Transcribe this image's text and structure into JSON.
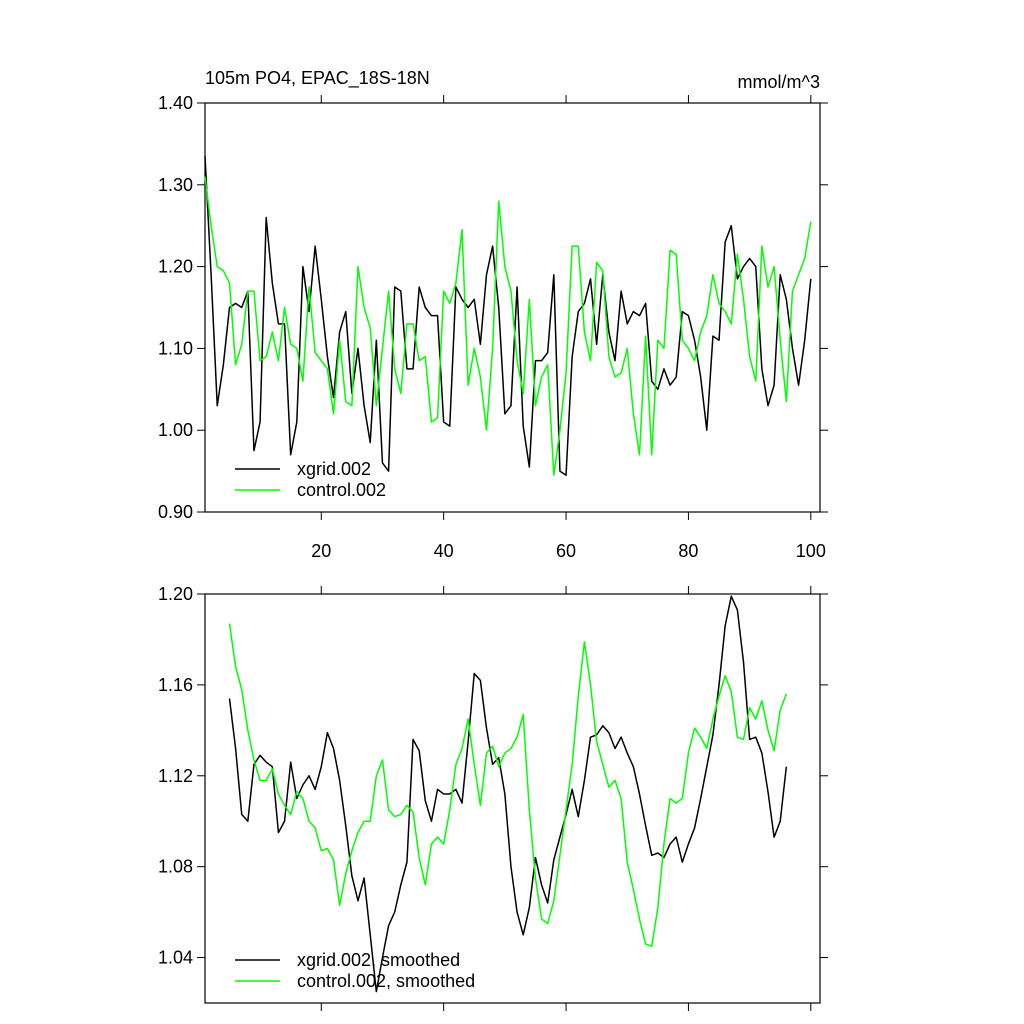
{
  "chart_data": [
    {
      "type": "line",
      "title": "105m PO4, EPAC_18S-18N",
      "units": "mmol/m^3",
      "x": [
        1,
        2,
        3,
        4,
        5,
        6,
        7,
        8,
        9,
        10,
        11,
        12,
        13,
        14,
        15,
        16,
        17,
        18,
        19,
        20,
        21,
        22,
        23,
        24,
        25,
        26,
        27,
        28,
        29,
        30,
        31,
        32,
        33,
        34,
        35,
        36,
        37,
        38,
        39,
        40,
        41,
        42,
        43,
        44,
        45,
        46,
        47,
        48,
        49,
        50,
        51,
        52,
        53,
        54,
        55,
        56,
        57,
        58,
        59,
        60,
        61,
        62,
        63,
        64,
        65,
        66,
        67,
        68,
        69,
        70,
        71,
        72,
        73,
        74,
        75,
        76,
        77,
        78,
        79,
        80,
        81,
        82,
        83,
        84,
        85,
        86,
        87,
        88,
        89,
        90,
        91,
        92,
        93,
        94,
        95,
        96,
        97,
        98,
        99,
        100
      ],
      "series": [
        {
          "name": "xgrid.002",
          "color": "#000000",
          "values": [
            1.335,
            1.19,
            1.03,
            1.08,
            1.15,
            1.155,
            1.15,
            1.17,
            0.975,
            1.01,
            1.26,
            1.18,
            1.13,
            1.13,
            0.97,
            1.01,
            1.2,
            1.145,
            1.225,
            1.16,
            1.09,
            1.04,
            1.12,
            1.145,
            1.045,
            1.1,
            1.03,
            0.985,
            1.11,
            0.96,
            0.95,
            1.175,
            1.17,
            1.075,
            1.075,
            1.175,
            1.15,
            1.14,
            1.14,
            1.01,
            1.005,
            1.175,
            1.16,
            1.15,
            1.16,
            1.105,
            1.19,
            1.225,
            1.15,
            1.02,
            1.03,
            1.175,
            1.005,
            0.955,
            1.085,
            1.085,
            1.095,
            1.19,
            0.95,
            0.945,
            1.09,
            1.145,
            1.155,
            1.185,
            1.105,
            1.19,
            1.12,
            1.085,
            1.17,
            1.13,
            1.145,
            1.14,
            1.155,
            1.06,
            1.05,
            1.075,
            1.055,
            1.065,
            1.145,
            1.14,
            1.11,
            1.065,
            1.0,
            1.115,
            1.11,
            1.23,
            1.25,
            1.185,
            1.2,
            1.21,
            1.2,
            1.075,
            1.03,
            1.055,
            1.19,
            1.16,
            1.1,
            1.055,
            1.11,
            1.185
          ]
        },
        {
          "name": "control.002",
          "color": "#00ff00",
          "values": [
            1.31,
            1.25,
            1.2,
            1.195,
            1.18,
            1.08,
            1.105,
            1.17,
            1.17,
            1.085,
            1.09,
            1.12,
            1.085,
            1.15,
            1.105,
            1.1,
            1.06,
            1.175,
            1.095,
            1.085,
            1.075,
            1.02,
            1.11,
            1.035,
            1.03,
            1.2,
            1.15,
            1.125,
            1.03,
            1.1,
            1.17,
            1.075,
            1.045,
            1.13,
            1.13,
            1.085,
            1.09,
            1.01,
            1.015,
            1.17,
            1.155,
            1.18,
            1.245,
            1.055,
            1.1,
            1.065,
            1.0,
            1.1,
            1.28,
            1.2,
            1.17,
            1.085,
            1.045,
            1.16,
            1.03,
            1.065,
            1.08,
            0.945,
            1.0,
            1.07,
            1.225,
            1.225,
            1.12,
            1.085,
            1.205,
            1.195,
            1.09,
            1.065,
            1.07,
            1.1,
            1.02,
            0.97,
            1.115,
            0.97,
            1.11,
            1.1,
            1.22,
            1.215,
            1.11,
            1.1,
            1.085,
            1.12,
            1.14,
            1.19,
            1.155,
            1.145,
            1.13,
            1.215,
            1.16,
            1.09,
            1.06,
            1.225,
            1.175,
            1.2,
            1.11,
            1.035,
            1.17,
            1.19,
            1.21,
            1.255
          ]
        }
      ],
      "xlim": [
        1,
        101.5
      ],
      "xticks": [
        20,
        40,
        60,
        80,
        100
      ],
      "xticklabels": true,
      "ylim": [
        0.9,
        1.4
      ],
      "yticks": [
        {
          "value": 0.9,
          "label": "0.90"
        },
        {
          "value": 1.0,
          "label": "1.00"
        },
        {
          "value": 1.1,
          "label": "1.10"
        },
        {
          "value": 1.2,
          "label": "1.20"
        },
        {
          "value": 1.3,
          "label": "1.30"
        },
        {
          "value": 1.4,
          "label": "1.40"
        }
      ],
      "legend": "lower left"
    },
    {
      "type": "line",
      "x": [
        5,
        6,
        7,
        8,
        9,
        10,
        11,
        12,
        13,
        14,
        15,
        16,
        17,
        18,
        19,
        20,
        21,
        22,
        23,
        24,
        25,
        26,
        27,
        28,
        29,
        30,
        31,
        32,
        33,
        34,
        35,
        36,
        37,
        38,
        39,
        40,
        41,
        42,
        43,
        44,
        45,
        46,
        47,
        48,
        49,
        50,
        51,
        52,
        53,
        54,
        55,
        56,
        57,
        58,
        59,
        60,
        61,
        62,
        63,
        64,
        65,
        66,
        67,
        68,
        69,
        70,
        71,
        72,
        73,
        74,
        75,
        76,
        77,
        78,
        79,
        80,
        81,
        82,
        83,
        84,
        85,
        86,
        87,
        88,
        89,
        90,
        91,
        92,
        93,
        94,
        95,
        96
      ],
      "series": [
        {
          "name": "xgrid.002, smoothed",
          "color": "#000000",
          "values": [
            1.154,
            1.132,
            1.103,
            1.1,
            1.125,
            1.129,
            1.126,
            1.124,
            1.095,
            1.1,
            1.126,
            1.11,
            1.116,
            1.12,
            1.114,
            1.124,
            1.139,
            1.132,
            1.118,
            1.098,
            1.076,
            1.065,
            1.075,
            1.05,
            1.025,
            1.04,
            1.054,
            1.06,
            1.072,
            1.082,
            1.136,
            1.131,
            1.109,
            1.1,
            1.114,
            1.112,
            1.112,
            1.114,
            1.108,
            1.135,
            1.165,
            1.162,
            1.141,
            1.125,
            1.128,
            1.112,
            1.08,
            1.06,
            1.05,
            1.062,
            1.084,
            1.072,
            1.064,
            1.083,
            1.093,
            1.103,
            1.114,
            1.102,
            1.118,
            1.137,
            1.138,
            1.142,
            1.139,
            1.132,
            1.137,
            1.13,
            1.124,
            1.112,
            1.098,
            1.085,
            1.086,
            1.084,
            1.09,
            1.093,
            1.082,
            1.09,
            1.097,
            1.11,
            1.124,
            1.138,
            1.16,
            1.186,
            1.199,
            1.193,
            1.17,
            1.136,
            1.137,
            1.13,
            1.113,
            1.093,
            1.1,
            1.124
          ]
        },
        {
          "name": "control.002, smoothed",
          "color": "#00ff00",
          "values": [
            1.187,
            1.168,
            1.158,
            1.14,
            1.127,
            1.118,
            1.118,
            1.123,
            1.112,
            1.107,
            1.103,
            1.113,
            1.11,
            1.1,
            1.097,
            1.087,
            1.088,
            1.083,
            1.063,
            1.077,
            1.087,
            1.095,
            1.1,
            1.1,
            1.12,
            1.127,
            1.105,
            1.102,
            1.103,
            1.107,
            1.104,
            1.084,
            1.072,
            1.09,
            1.093,
            1.09,
            1.105,
            1.125,
            1.132,
            1.145,
            1.125,
            1.107,
            1.13,
            1.133,
            1.124,
            1.13,
            1.132,
            1.137,
            1.147,
            1.105,
            1.075,
            1.057,
            1.055,
            1.065,
            1.085,
            1.105,
            1.125,
            1.155,
            1.179,
            1.16,
            1.135,
            1.125,
            1.115,
            1.118,
            1.11,
            1.082,
            1.07,
            1.057,
            1.046,
            1.045,
            1.062,
            1.09,
            1.11,
            1.108,
            1.11,
            1.13,
            1.141,
            1.137,
            1.132,
            1.145,
            1.155,
            1.164,
            1.157,
            1.137,
            1.136,
            1.15,
            1.145,
            1.153,
            1.14,
            1.131,
            1.149,
            1.156
          ]
        }
      ],
      "xlim": [
        1,
        101.5
      ],
      "xticks": [
        20,
        40,
        60,
        80,
        100
      ],
      "xticklabels": false,
      "ylim": [
        1.02,
        1.2
      ],
      "yticks": [
        1.04,
        1.08,
        1.12,
        1.16,
        {
          "value": 1.2,
          "label": "1.20"
        }
      ],
      "legend": "lower left"
    }
  ]
}
